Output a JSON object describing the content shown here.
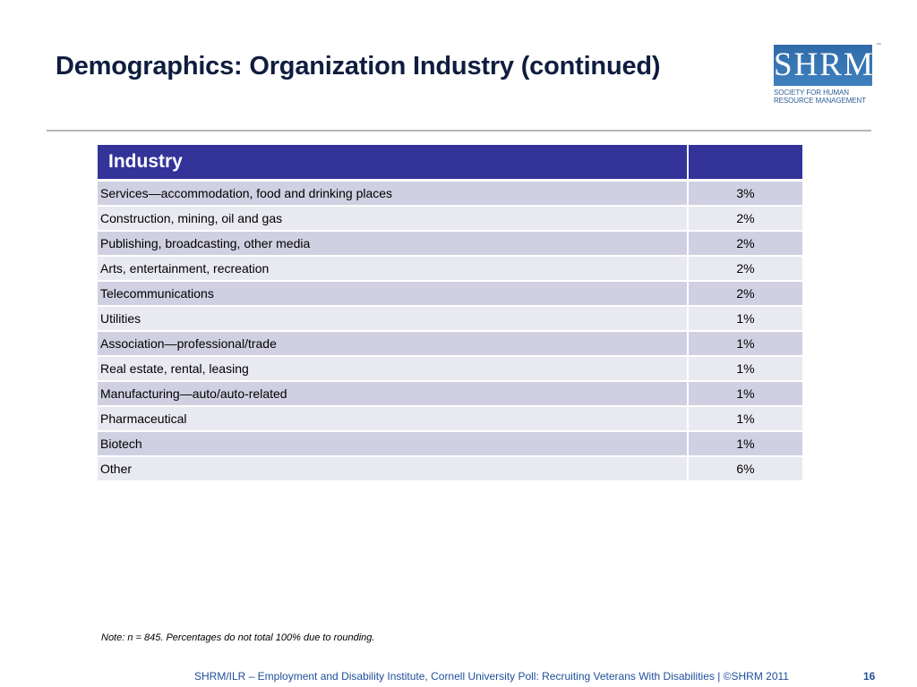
{
  "title": "Demographics: Organization Industry (continued)",
  "logo": {
    "wordmark": "SHRM",
    "tm": "™",
    "line1": "SOCIETY FOR HUMAN",
    "line2": "RESOURCE MANAGEMENT"
  },
  "table": {
    "header": {
      "label": "Industry",
      "value": ""
    },
    "rows": [
      {
        "label": "Services—accommodation, food and drinking places",
        "value": "3%"
      },
      {
        "label": "Construction, mining, oil and gas",
        "value": "2%"
      },
      {
        "label": "Publishing, broadcasting, other media",
        "value": "2%"
      },
      {
        "label": "Arts, entertainment, recreation",
        "value": "2%"
      },
      {
        "label": "Telecommunications",
        "value": "2%"
      },
      {
        "label": "Utilities",
        "value": "1%"
      },
      {
        "label": "Association—professional/trade",
        "value": "1%"
      },
      {
        "label": "Real estate, rental, leasing",
        "value": "1%"
      },
      {
        "label": "Manufacturing—auto/auto-related",
        "value": "1%"
      },
      {
        "label": "Pharmaceutical",
        "value": "1%"
      },
      {
        "label": "Biotech",
        "value": "1%"
      },
      {
        "label": "Other",
        "value": "6%"
      }
    ]
  },
  "note": "Note: n = 845. Percentages do not total 100% due to rounding.",
  "footer": {
    "text": "SHRM/ILR –  Employment and Disability Institute, Cornell University Poll: Recruiting Veterans With Disabilities | ©SHRM 2011",
    "page": "16"
  },
  "colors": {
    "header_bg": "#333399",
    "row_odd": "#d0d0e2",
    "row_even": "#e9e9f1",
    "title": "#0f1d3f",
    "footer": "#1f4e9a"
  }
}
